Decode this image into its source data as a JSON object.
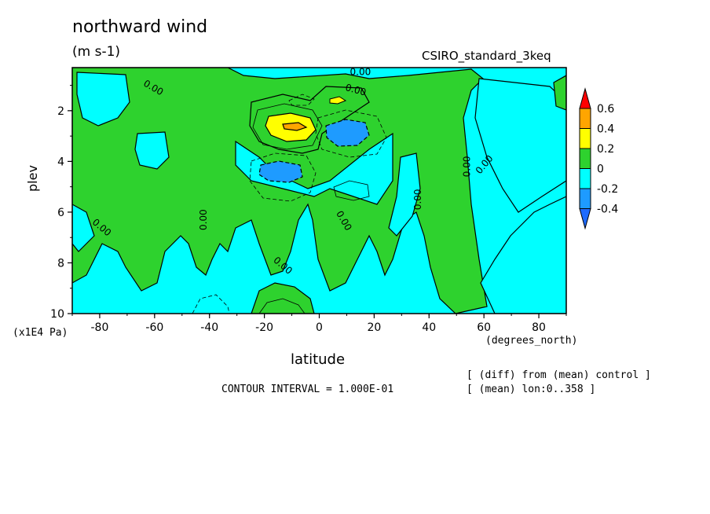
{
  "title": "northward wind",
  "units": "(m s-1)",
  "dataset": "CSIRO_standard_3keq",
  "contour_interval": "CONTOUR INTERVAL = 1.000E-01",
  "notes": [
    "[ (diff) from (mean) control ]",
    "[ (mean) lon:0..358 ]"
  ],
  "colors": {
    "ocean_neg_light": "#00ffff",
    "neg_mid": "#1e9bff",
    "zero_green": "#2ed22e",
    "pos_yellow": "#ffff00",
    "pos_orange": "#ffa500",
    "pos_red": "#ff0000",
    "neg_blue": "#1e6bff"
  },
  "chart_data": {
    "type": "heatmap",
    "title": "northward wind",
    "subtitle": "(m s-1)",
    "xlabel": "latitude",
    "x_unit": "(degrees_north)",
    "ylabel": "plev",
    "y_unit": "(x1E4 Pa)",
    "xlim": [
      -90,
      90
    ],
    "ylim": [
      10,
      0.3
    ],
    "x_ticks": [
      -80,
      -60,
      -40,
      -20,
      0,
      20,
      40,
      60,
      80
    ],
    "x_tick_labels": [
      "-80",
      "-60",
      "-40",
      "-20",
      "0",
      "20",
      "40",
      "60",
      "80"
    ],
    "y_ticks": [
      2,
      4,
      6,
      8,
      10
    ],
    "y_tick_labels": [
      "2",
      "4",
      "6",
      "8",
      "10"
    ],
    "colorbar": {
      "levels": [
        "0.6",
        "0.4",
        "0.2",
        "0",
        "-0.2",
        "-0.4"
      ],
      "colors": [
        "#ff0000",
        "#ffa500",
        "#ffff00",
        "#2ed22e",
        "#00ffff",
        "#1e9bff"
      ],
      "extend_top": "#ff0000",
      "extend_bottom": "#1e6bff"
    },
    "contour_labels": [
      "0.00",
      "0.00",
      "0.00",
      "0.00",
      "0.00",
      "0.00",
      "0.00",
      "0.00",
      "0.00",
      "0.00"
    ],
    "features": [
      {
        "label": "positive max",
        "lat": -12,
        "plev": 2.5,
        "value": 0.35
      },
      {
        "label": "negative min",
        "lat": 12,
        "plev": 2.8,
        "value": -0.35
      },
      {
        "label": "negative min",
        "lat": -14,
        "plev": 4.3,
        "value": -0.3
      },
      {
        "label": "small positive",
        "lat": 7,
        "plev": 1.4,
        "value": 0.2
      }
    ]
  }
}
